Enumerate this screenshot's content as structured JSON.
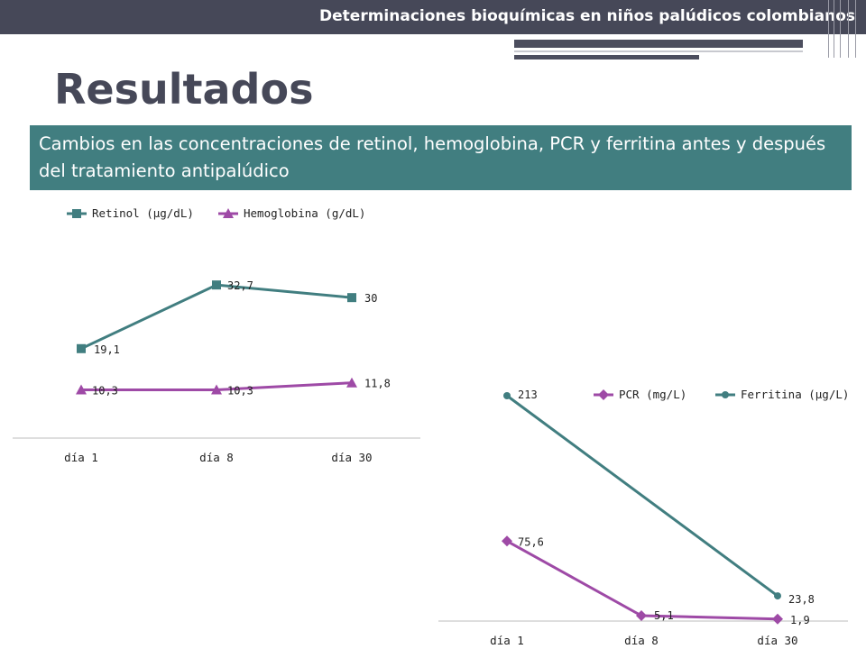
{
  "header": {
    "title": "Determinaciones bioquímicas en niños palúdicos colombianos"
  },
  "page": {
    "heading": "Resultados",
    "subtitle": "Cambios en las concentraciones de retinol, hemoglobina, PCR y ferritina antes y después del tratamiento antipalúdico"
  },
  "colors": {
    "teal": "#417e80",
    "purple": "#9e4aa6",
    "dark": "#464858"
  },
  "chart_data": [
    {
      "type": "line",
      "categories": [
        "día 1",
        "día 8",
        "día 30"
      ],
      "series": [
        {
          "name": "Retinol (µg/dL)",
          "values": [
            19.1,
            32.7,
            30
          ],
          "labels": [
            "19,1",
            "32,7",
            "30"
          ],
          "marker": "square",
          "color": "#417e80"
        },
        {
          "name": "Hemoglobina (g/dL)",
          "values": [
            10.3,
            10.3,
            11.8
          ],
          "labels": [
            "10,3",
            "10,3",
            "11,8"
          ],
          "marker": "triangle",
          "color": "#9e4aa6"
        }
      ],
      "legend": "top-left",
      "grid": false
    },
    {
      "type": "line",
      "categories": [
        "día 1",
        "día 8",
        "día 30"
      ],
      "series": [
        {
          "name": "PCR (mg/L)",
          "values": [
            75.6,
            5.1,
            1.9
          ],
          "labels": [
            "75,6",
            "5,1",
            "1,9"
          ],
          "marker": "diamond",
          "color": "#9e4aa6"
        },
        {
          "name": "Ferritina (µg/L)",
          "values": [
            213,
            null,
            23.8
          ],
          "labels": [
            "213",
            "",
            "23,8"
          ],
          "marker": "circle",
          "color": "#417e80"
        }
      ],
      "legend": "top-right",
      "grid": false
    }
  ]
}
